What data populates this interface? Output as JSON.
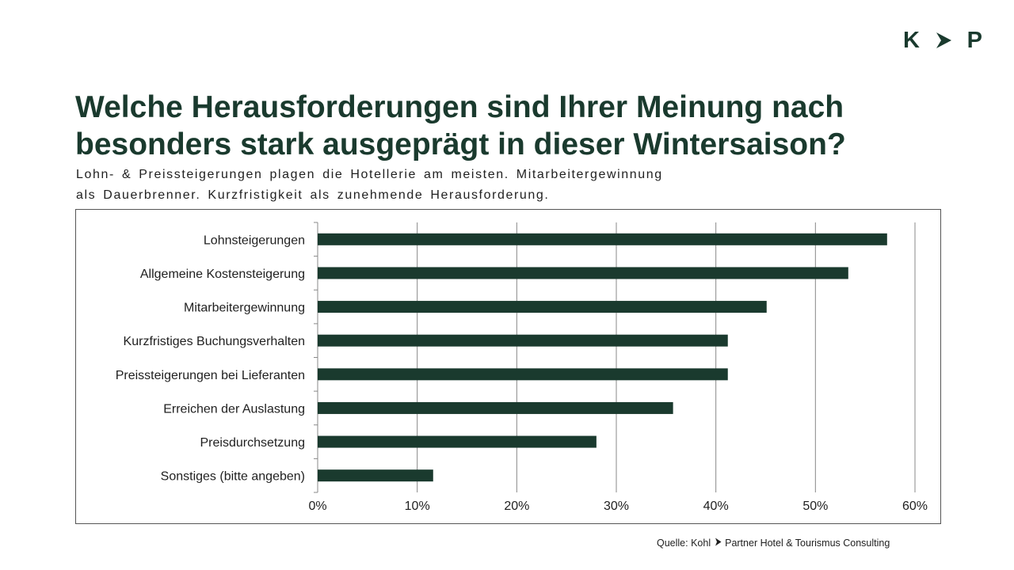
{
  "logo": {
    "left": "K",
    "right": "P",
    "arrow_icon": "chevron-right-icon"
  },
  "title": "Welche Herausforderungen sind Ihrer Meinung nach besonders stark ausgeprägt in dieser Wintersaison?",
  "subtitle_line1": "Lohn- & Preissteigerungen plagen die Hotellerie am meisten. Mitarbeitergewinnung",
  "subtitle_line2": "als Dauerbrenner. Kurzfristigkeit als zunehmende Herausforderung.",
  "source": {
    "prefix": "Quelle: Kohl",
    "suffix": "Partner Hotel & Tourismus Consulting"
  },
  "colors": {
    "bar": "#1a3a2e",
    "text": "#1a3a2e",
    "grid": "#888888"
  },
  "chart_data": {
    "type": "bar",
    "orientation": "horizontal",
    "categories": [
      "Lohnsteigerungen",
      "Allgemeine Kostensteigerung",
      "Mitarbeitergewinnung",
      "Kurzfristiges Buchungsverhalten",
      "Preissteigerungen bei Lieferanten",
      "Erreichen der Auslastung",
      "Preisdurchsetzung",
      "Sonstiges (bitte angeben)"
    ],
    "values": [
      57.2,
      53.3,
      45.1,
      41.2,
      41.2,
      35.7,
      28.0,
      11.6
    ],
    "xlim": [
      0,
      60
    ],
    "xticks": [
      "0%",
      "10%",
      "20%",
      "30%",
      "40%",
      "50%",
      "60%"
    ],
    "grid": true,
    "legend": "none"
  }
}
